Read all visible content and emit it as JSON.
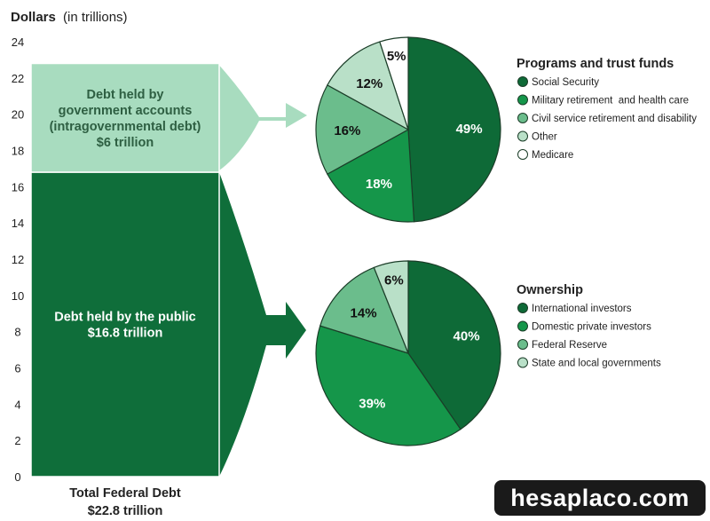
{
  "chart_data": [
    {
      "type": "bar",
      "stacked": true,
      "axis_title": "Dollars",
      "axis_title_unit": "(in trillions)",
      "ylim": [
        0,
        24
      ],
      "yticks": [
        0,
        2,
        4,
        6,
        8,
        10,
        12,
        14,
        16,
        18,
        20,
        22,
        24
      ],
      "grid": false,
      "categories": [
        "Total Federal Debt"
      ],
      "total_label": "Total Federal Debt",
      "total_value_label": "$22.8 trillion",
      "series": [
        {
          "name": "Debt held by the public",
          "values": [
            16.8
          ],
          "label_lines": [
            "Debt held by the public",
            "$16.8 trillion"
          ],
          "color": "#0f6e3a"
        },
        {
          "name": "Debt held by government accounts (intragovernmental debt)",
          "values": [
            6
          ],
          "label_lines": [
            "Debt held by",
            "government accounts",
            "(intragovernmental debt)",
            "$6 trillion"
          ],
          "color": "#a8dcbf"
        }
      ]
    },
    {
      "type": "pie",
      "title": "Programs and trust funds",
      "legend_position": "right",
      "slices": [
        {
          "label": "Social Security",
          "value": 49,
          "display": "49%",
          "color": "#0e6a37",
          "text_color": "#ffffff"
        },
        {
          "label": "Military retirement  and health care",
          "value": 18,
          "display": "18%",
          "color": "#15964a",
          "text_color": "#ffffff"
        },
        {
          "label": "Civil service retirement and disability",
          "value": 16,
          "display": "16%",
          "color": "#6bbd8c",
          "text_color": "#111111"
        },
        {
          "label": "Other",
          "value": 12,
          "display": "12%",
          "color": "#b9e0c8",
          "text_color": "#111111"
        },
        {
          "label": "Medicare",
          "value": 5,
          "display": "5%",
          "color": "#ffffff",
          "text_color": "#111111"
        }
      ]
    },
    {
      "type": "pie",
      "title": "Ownership",
      "legend_position": "right",
      "slices": [
        {
          "label": "International investors",
          "value": 40,
          "display": "40%",
          "color": "#0e6a37",
          "text_color": "#ffffff"
        },
        {
          "label": "Domestic private investors",
          "value": 39,
          "display": "39%",
          "color": "#15964a",
          "text_color": "#ffffff"
        },
        {
          "label": "Federal Reserve",
          "value": 14,
          "display": "14%",
          "color": "#6bbd8c",
          "text_color": "#111111"
        },
        {
          "label": "State and local governments",
          "value": 6,
          "display": "6%",
          "color": "#b9e0c8",
          "text_color": "#111111"
        }
      ]
    }
  ],
  "watermark": "hesaplaco.com"
}
